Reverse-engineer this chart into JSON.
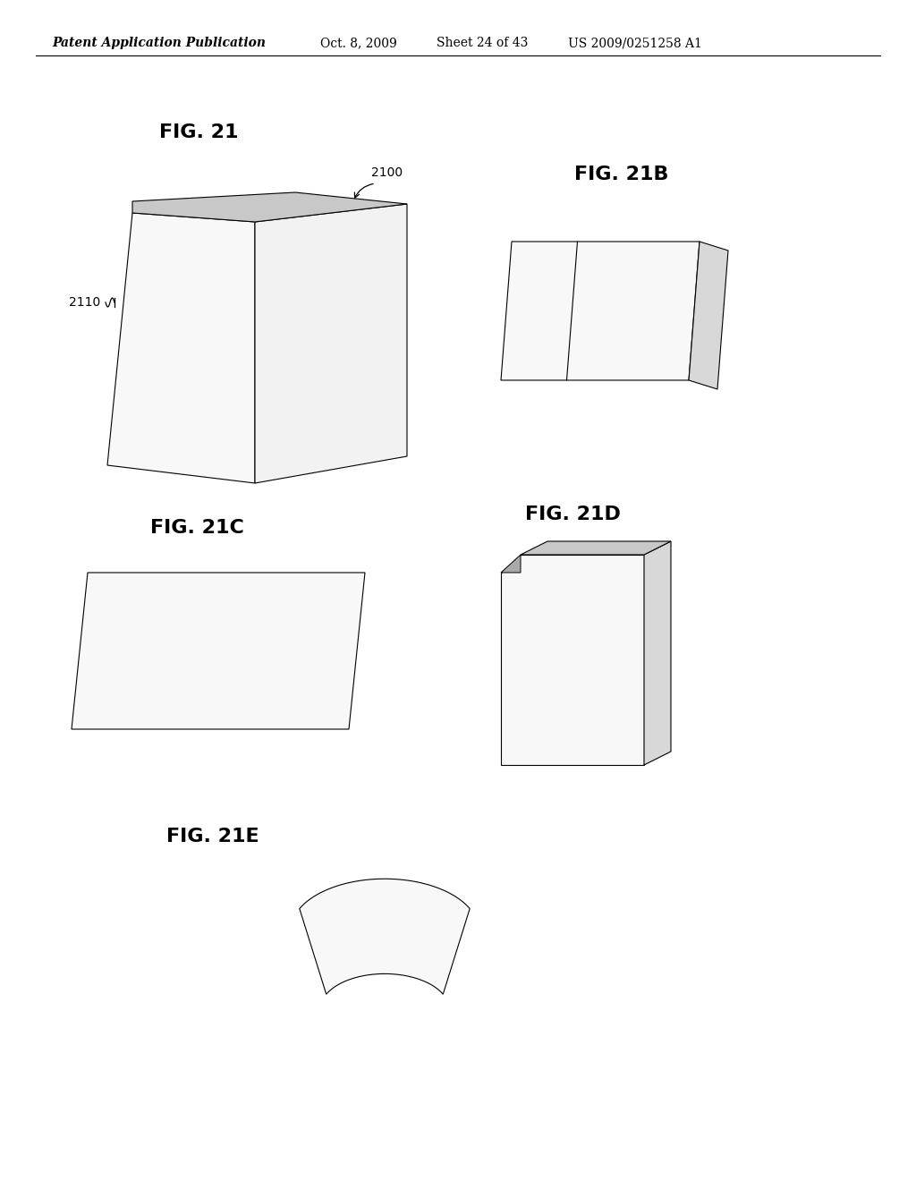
{
  "background_color": "#ffffff",
  "header_text": "Patent Application Publication",
  "header_date": "Oct. 8, 2009",
  "header_sheet": "Sheet 24 of 43",
  "header_patent": "US 2009/0251258 A1",
  "header_fontsize": 10,
  "fig21_label": "FIG. 21",
  "fig21b_label": "FIG. 21B",
  "fig21c_label": "FIG. 21C",
  "fig21d_label": "FIG. 21D",
  "fig21e_label": "FIG. 21E",
  "ref_2100": "2100",
  "ref_2110": "2110",
  "label_fontsize": 16,
  "ref_fontsize": 10,
  "line_color": "#000000",
  "gray_top": "#c8c8c8",
  "gray_side": "#d8d8d8",
  "face_white": "#f8f8f8",
  "face_offwhite": "#f2f2f2"
}
